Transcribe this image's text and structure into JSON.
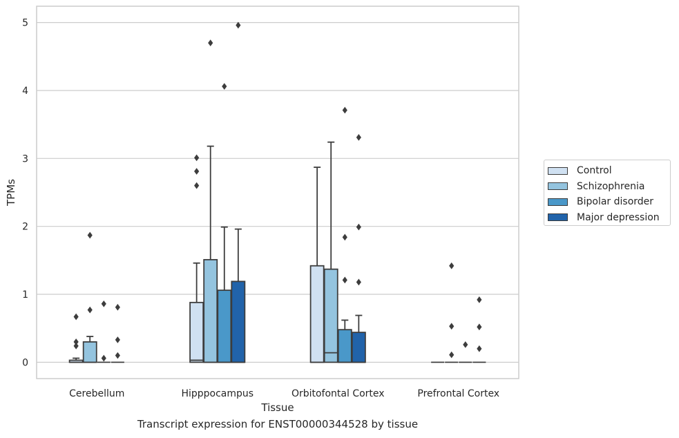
{
  "caption": "Transcript expression for ENST00000344528 by tissue",
  "chart_data": {
    "type": "boxplot",
    "xlabel": "Tissue",
    "ylabel": "TPMs",
    "ylim": [
      -0.24,
      5.24
    ],
    "yticks": [
      0,
      1,
      2,
      3,
      4,
      5
    ],
    "grid": "horizontal",
    "legend_position": "right",
    "categories": [
      "Cerebellum",
      "Hipppocampus",
      "Orbitofontal Cortex",
      "Prefrontal Cortex"
    ],
    "series": [
      {
        "name": "Control",
        "color": "#d0e1f2",
        "boxes": [
          {
            "q1": 0.0,
            "median": 0.0,
            "q3": 0.03,
            "whisker_low": 0.0,
            "whisker_high": 0.06,
            "outliers": [
              0.67,
              0.3,
              0.24
            ]
          },
          {
            "q1": 0.0,
            "median": 0.03,
            "q3": 0.88,
            "whisker_low": 0.0,
            "whisker_high": 1.46,
            "outliers": [
              3.01,
              2.81,
              2.6
            ]
          },
          {
            "q1": 0.0,
            "median": 0.0,
            "q3": 1.42,
            "whisker_low": 0.0,
            "whisker_high": 2.87,
            "outliers": []
          },
          {
            "q1": 0.0,
            "median": 0.0,
            "q3": 0.0,
            "whisker_low": 0.0,
            "whisker_high": 0.0,
            "outliers": []
          }
        ]
      },
      {
        "name": "Schizophrenia",
        "color": "#94c4df",
        "boxes": [
          {
            "q1": 0.0,
            "median": 0.0,
            "q3": 0.3,
            "whisker_low": 0.0,
            "whisker_high": 0.38,
            "outliers": [
              1.87,
              0.77
            ]
          },
          {
            "q1": 0.0,
            "median": 0.0,
            "q3": 1.51,
            "whisker_low": 0.0,
            "whisker_high": 3.18,
            "outliers": [
              4.7
            ]
          },
          {
            "q1": 0.0,
            "median": 0.14,
            "q3": 1.37,
            "whisker_low": 0.0,
            "whisker_high": 3.24,
            "outliers": []
          },
          {
            "q1": 0.0,
            "median": 0.0,
            "q3": 0.0,
            "whisker_low": 0.0,
            "whisker_high": 0.0,
            "outliers": [
              1.42,
              0.53,
              0.11
            ]
          }
        ]
      },
      {
        "name": "Bipolar disorder",
        "color": "#4a98c9",
        "boxes": [
          {
            "q1": 0.0,
            "median": 0.0,
            "q3": 0.0,
            "whisker_low": 0.0,
            "whisker_high": 0.0,
            "outliers": [
              0.86,
              0.06
            ]
          },
          {
            "q1": 0.0,
            "median": 0.0,
            "q3": 1.06,
            "whisker_low": 0.0,
            "whisker_high": 1.99,
            "outliers": [
              4.06
            ]
          },
          {
            "q1": 0.0,
            "median": 0.0,
            "q3": 0.48,
            "whisker_low": 0.0,
            "whisker_high": 0.62,
            "outliers": [
              3.71,
              1.84,
              1.21
            ]
          },
          {
            "q1": 0.0,
            "median": 0.0,
            "q3": 0.0,
            "whisker_low": 0.0,
            "whisker_high": 0.0,
            "outliers": [
              0.26
            ]
          }
        ]
      },
      {
        "name": "Major depression",
        "color": "#2163aa",
        "boxes": [
          {
            "q1": 0.0,
            "median": 0.0,
            "q3": 0.0,
            "whisker_low": 0.0,
            "whisker_high": 0.0,
            "outliers": [
              0.81,
              0.33,
              0.1
            ]
          },
          {
            "q1": 0.0,
            "median": 0.0,
            "q3": 1.19,
            "whisker_low": 0.0,
            "whisker_high": 1.96,
            "outliers": [
              4.96
            ]
          },
          {
            "q1": 0.0,
            "median": 0.0,
            "q3": 0.44,
            "whisker_low": 0.0,
            "whisker_high": 0.69,
            "outliers": [
              3.31,
              1.99,
              1.18
            ]
          },
          {
            "q1": 0.0,
            "median": 0.0,
            "q3": 0.0,
            "whisker_low": 0.0,
            "whisker_high": 0.0,
            "outliers": [
              0.92,
              0.52,
              0.2
            ]
          }
        ]
      }
    ]
  }
}
